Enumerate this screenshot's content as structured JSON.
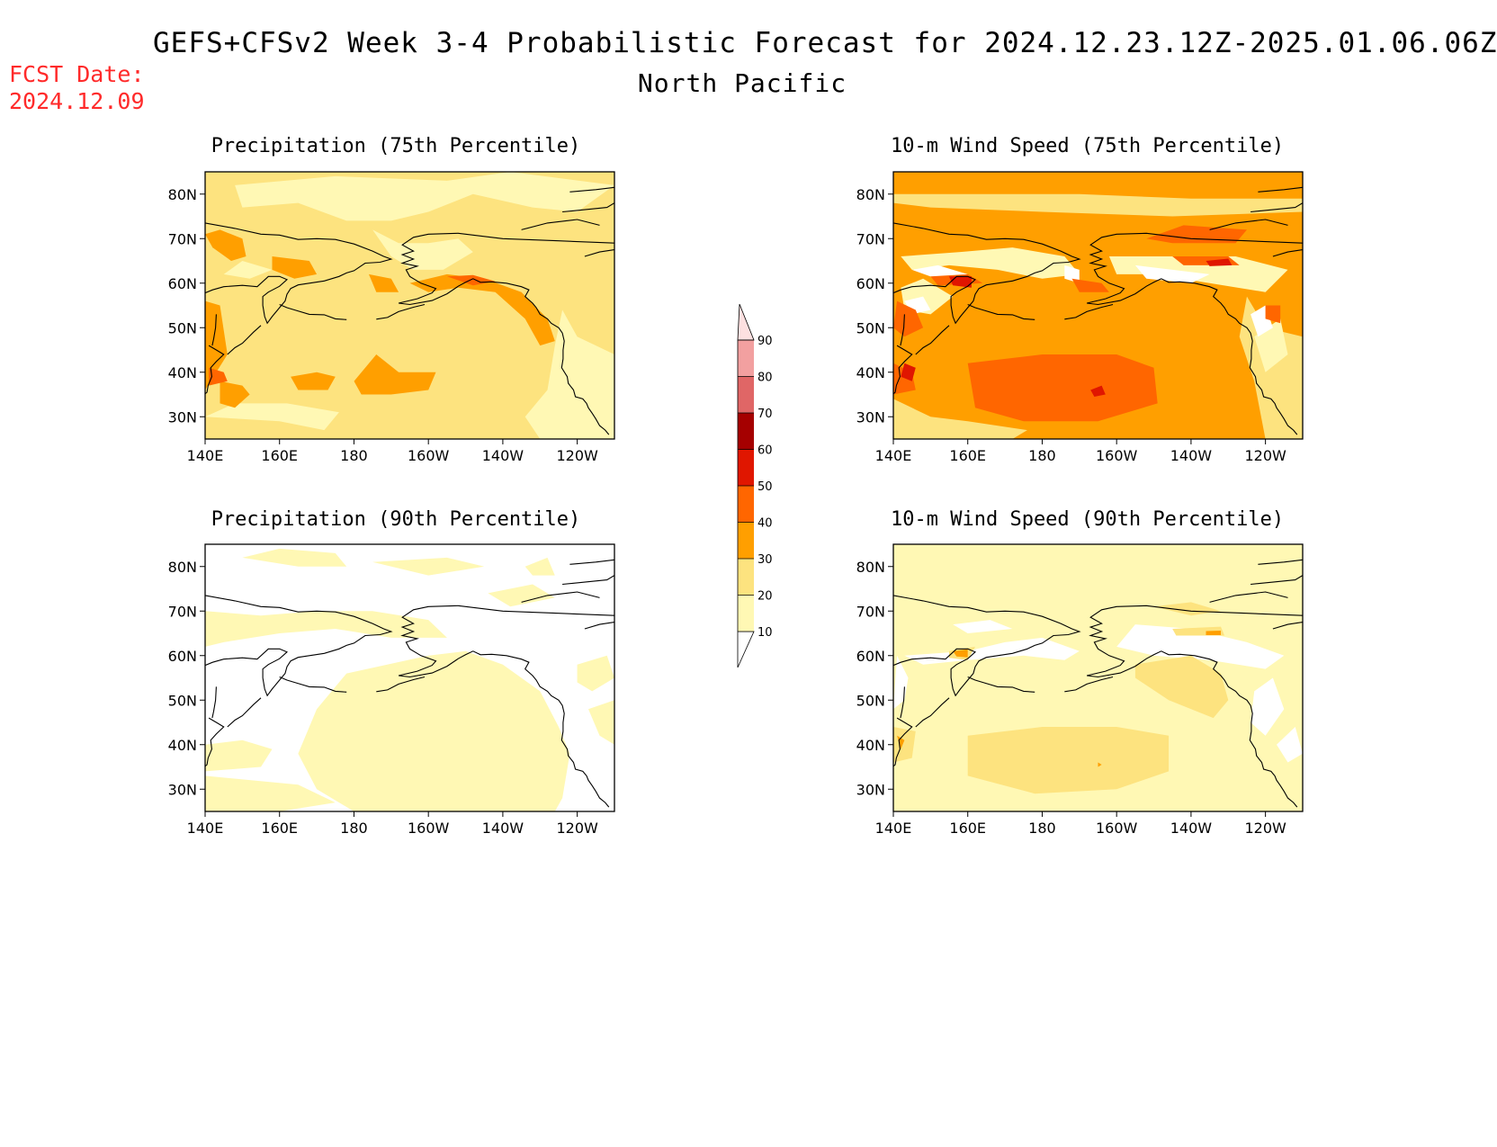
{
  "header": {
    "title": "GEFS+CFSv2 Week 3-4 Probabilistic Forecast for 2024.12.23.12Z-2025.01.06.06Z",
    "subtitle": "North Pacific",
    "fcst_label": "FCST Date:",
    "fcst_date": "2024.12.09"
  },
  "axes": {
    "lat_ticks": [
      "80N",
      "70N",
      "60N",
      "50N",
      "40N",
      "30N"
    ],
    "lon_ticks": [
      "140E",
      "160E",
      "180",
      "160W",
      "140W",
      "120W"
    ]
  },
  "panels": [
    {
      "id": "precip75",
      "title": "Precipitation (75th Percentile)"
    },
    {
      "id": "wind75",
      "title": "10-m Wind Speed (75th Percentile)"
    },
    {
      "id": "precip90",
      "title": "Precipitation (90th Percentile)"
    },
    {
      "id": "wind90",
      "title": "10-m Wind Speed (90th Percentile)"
    }
  ],
  "colorbar": {
    "levels": [
      "10",
      "20",
      "30",
      "40",
      "50",
      "60",
      "70",
      "80",
      "90"
    ],
    "colors": [
      "#ffffff",
      "#fff8b4",
      "#fde37f",
      "#ff9f00",
      "#ff6600",
      "#e01600",
      "#a50000",
      "#e06666",
      "#f2a0a0",
      "#fde0e0"
    ]
  }
}
